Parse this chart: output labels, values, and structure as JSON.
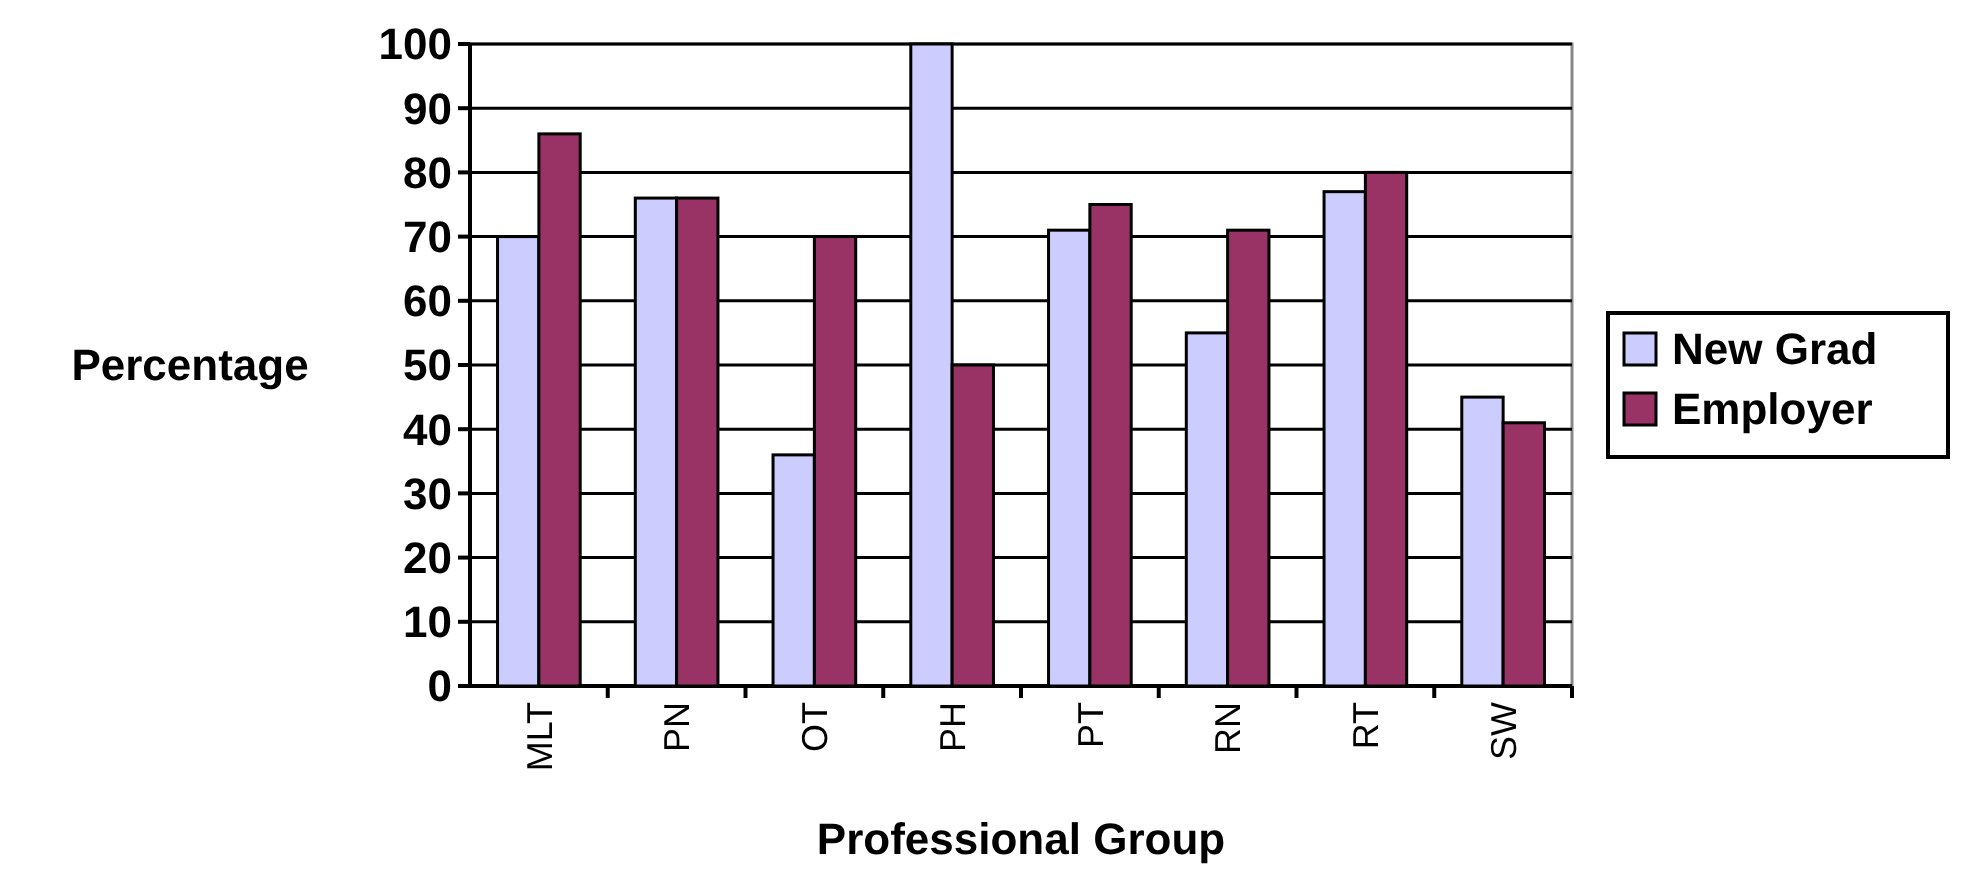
{
  "chart_data": {
    "type": "bar",
    "xlabel": "Professional Group",
    "ylabel": "Percentage",
    "categories": [
      "MLT",
      "PN",
      "OT",
      "PH",
      "PT",
      "RN",
      "RT",
      "SW"
    ],
    "series": [
      {
        "name": "New Grad",
        "color": "#ccccff",
        "values": [
          70,
          76,
          36,
          100,
          71,
          55,
          77,
          45
        ]
      },
      {
        "name": "Employer",
        "color": "#993366",
        "values": [
          86,
          76,
          70,
          50,
          75,
          71,
          80,
          41
        ]
      }
    ],
    "ylim": [
      0,
      100
    ],
    "yticks": [
      0,
      10,
      20,
      30,
      40,
      50,
      60,
      70,
      80,
      90,
      100
    ],
    "grid": "y",
    "legend": "right"
  }
}
